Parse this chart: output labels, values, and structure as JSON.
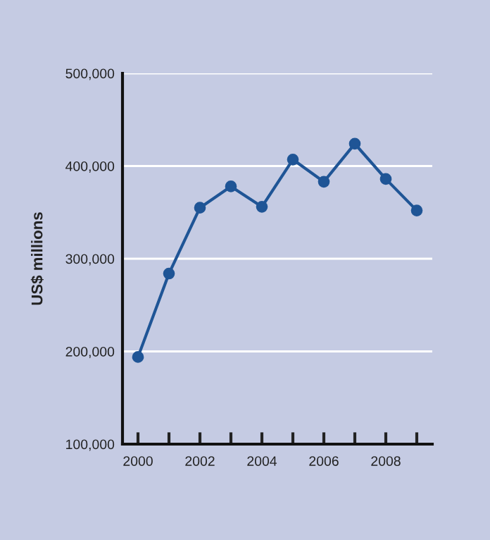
{
  "chart_data": {
    "type": "line",
    "ylabel": "US$ millions",
    "x": [
      2000,
      2001,
      2002,
      2003,
      2004,
      2005,
      2006,
      2007,
      2008,
      2009
    ],
    "series": [
      {
        "color": "#1f5596",
        "values": [
          194000,
          284000,
          355000,
          378000,
          356000,
          407000,
          383000,
          424000,
          386000,
          352000
        ]
      }
    ],
    "xlim": [
      1999.5,
      2009.5
    ],
    "xticks": [
      2000,
      {
        "value": 2001,
        "label": null
      },
      2002,
      {
        "value": 2003,
        "label": null
      },
      2004,
      {
        "value": 2005,
        "label": null
      },
      2006,
      {
        "value": 2007,
        "label": null
      },
      2008,
      {
        "value": 2009,
        "label": null
      }
    ],
    "ylim": [
      100000,
      500000
    ],
    "yticks": [
      {
        "value": 100000,
        "label": "100,000"
      },
      {
        "value": 200000,
        "label": "200,000"
      },
      {
        "value": 300000,
        "label": "300,000"
      },
      {
        "value": 400000,
        "label": "400,000"
      },
      {
        "value": 500000,
        "label": "500,000"
      }
    ],
    "grid": "y",
    "marker": "circle",
    "line_style": "solid"
  }
}
